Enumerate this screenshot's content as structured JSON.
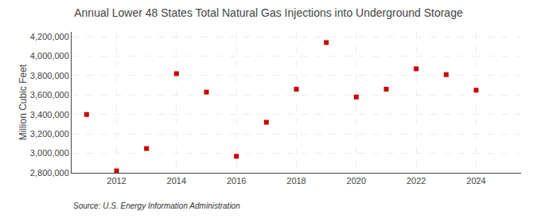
{
  "chart_data": {
    "type": "scatter",
    "title": "Annual Lower 48 States Total Natural Gas Injections into Underground Storage",
    "ylabel": "Million Cubic Feet",
    "annotations": [
      "Source: U.S. Energy Information Administration"
    ],
    "x": [
      2011,
      2012,
      2013,
      2014,
      2015,
      2016,
      2017,
      2018,
      2019,
      2020,
      2021,
      2022,
      2023,
      2024
    ],
    "values": [
      3400000,
      2820000,
      3050000,
      3820000,
      3630000,
      2970000,
      3320000,
      3660000,
      4140000,
      3580000,
      3660000,
      3870000,
      3810000,
      3650000
    ],
    "color": "#CC0000",
    "marker": "square",
    "xlim": [
      2010.5,
      2025.5
    ],
    "xticks": [
      2012,
      2014,
      2016,
      2018,
      2020,
      2022,
      2024
    ],
    "ylim": [
      2800000,
      4250000
    ],
    "yticks": [
      {
        "value": 2800000,
        "label": "2,800,000"
      },
      {
        "value": 3000000,
        "label": "3,000,000"
      },
      {
        "value": 3200000,
        "label": "3,200,000"
      },
      {
        "value": 3400000,
        "label": "3,400,000"
      },
      {
        "value": 3600000,
        "label": "3,600,000"
      },
      {
        "value": 3800000,
        "label": "3,800,000"
      },
      {
        "value": 4000000,
        "label": "4,000,000"
      },
      {
        "value": 4200000,
        "label": "4,200,000"
      }
    ],
    "grid": true
  }
}
